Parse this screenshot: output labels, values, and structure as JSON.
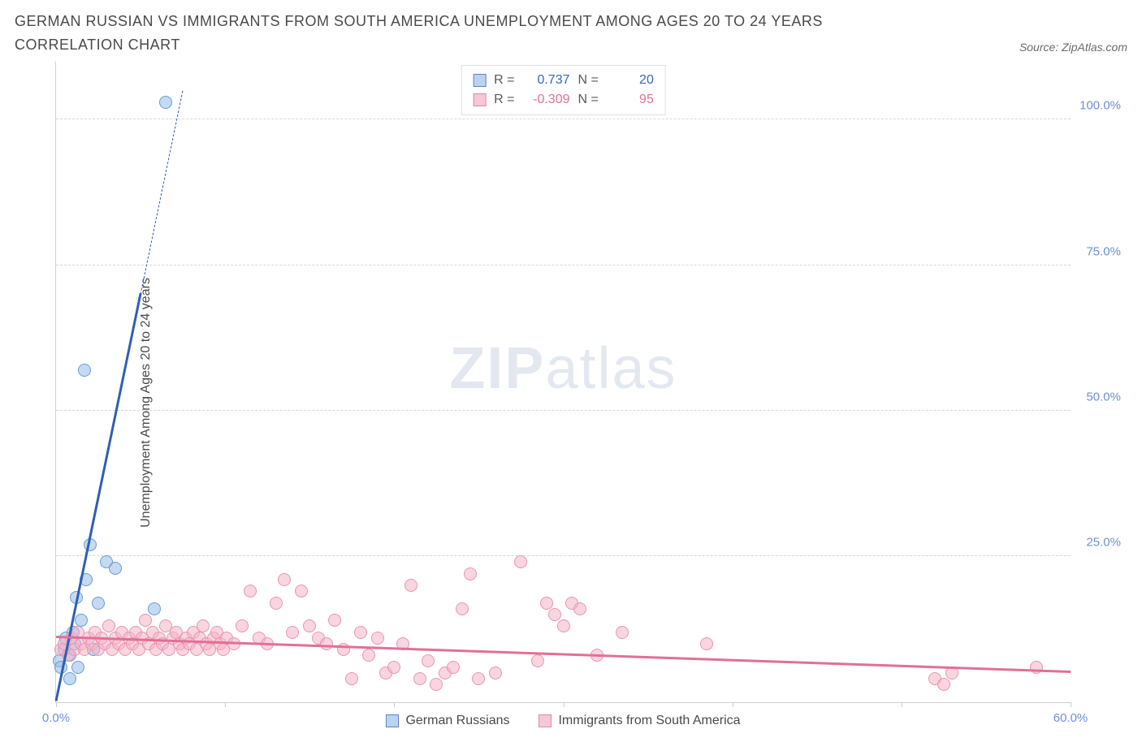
{
  "title": "GERMAN RUSSIAN VS IMMIGRANTS FROM SOUTH AMERICA UNEMPLOYMENT AMONG AGES 20 TO 24 YEARS CORRELATION CHART",
  "source_label": "Source: ZipAtlas.com",
  "y_axis_label": "Unemployment Among Ages 20 to 24 years",
  "watermark": {
    "bold": "ZIP",
    "rest": "atlas"
  },
  "axes": {
    "xlim": [
      0,
      60
    ],
    "ylim": [
      0,
      105
    ],
    "x_ticks": [
      0,
      10,
      20,
      30,
      40,
      50,
      60
    ],
    "x_tick_labels": [
      "0.0%",
      "",
      "",
      "",
      "",
      "",
      "60.0%"
    ],
    "y_ticks": [
      25,
      50,
      75,
      100
    ],
    "y_tick_labels": [
      "25.0%",
      "50.0%",
      "75.0%",
      "100.0%"
    ],
    "grid_color": "#d8d8d8",
    "axis_color": "#cfcfcf",
    "tick_label_color": "#6f8fd8"
  },
  "legend_top": {
    "rows": [
      {
        "swatch_fill": "#bcd3ef",
        "swatch_border": "#5a86c9",
        "r_label": "R =",
        "r_value": "0.737",
        "r_color": "#3467c6",
        "n_label": "N =",
        "n_value": "20",
        "n_color": "#3467c6"
      },
      {
        "swatch_fill": "#f6c7d4",
        "swatch_border": "#e08aa5",
        "r_label": "R =",
        "r_value": "-0.309",
        "r_color": "#e26f97",
        "n_label": "N =",
        "n_value": "95",
        "n_color": "#e26f97"
      }
    ]
  },
  "legend_bottom": {
    "items": [
      {
        "swatch_fill": "#bcd3ef",
        "swatch_border": "#5a86c9",
        "label": "German Russians"
      },
      {
        "swatch_fill": "#f6c7d4",
        "swatch_border": "#e08aa5",
        "label": "Immigrants from South America"
      }
    ]
  },
  "series": [
    {
      "name": "german-russians",
      "marker_fill": "rgba(150,188,232,0.55)",
      "marker_stroke": "#6a9bd6",
      "marker_radius": 8,
      "trend": {
        "color": "#2f5fb5",
        "width": 3,
        "x1": 0,
        "y1": 0,
        "x2": 7.5,
        "y2": 105,
        "dashed_extension": true
      },
      "points": [
        [
          0.2,
          7
        ],
        [
          0.3,
          6
        ],
        [
          0.5,
          9
        ],
        [
          0.6,
          11
        ],
        [
          0.8,
          8
        ],
        [
          0.8,
          4
        ],
        [
          1.0,
          12
        ],
        [
          1.1,
          10
        ],
        [
          1.2,
          18
        ],
        [
          1.3,
          6
        ],
        [
          1.5,
          14
        ],
        [
          1.8,
          21
        ],
        [
          2.0,
          27
        ],
        [
          2.2,
          9
        ],
        [
          2.5,
          17
        ],
        [
          3.0,
          24
        ],
        [
          3.5,
          23
        ],
        [
          1.7,
          57
        ],
        [
          5.8,
          16
        ],
        [
          6.5,
          103
        ]
      ]
    },
    {
      "name": "immigrants-south-america",
      "marker_fill": "rgba(244,178,198,0.55)",
      "marker_stroke": "#e795af",
      "marker_radius": 8,
      "trend": {
        "color": "#e26f97",
        "width": 3,
        "x1": 0,
        "y1": 11,
        "x2": 60,
        "y2": 5,
        "dashed_extension": false
      },
      "points": [
        [
          0.3,
          9
        ],
        [
          0.5,
          10
        ],
        [
          0.7,
          8
        ],
        [
          0.9,
          11
        ],
        [
          1.1,
          9
        ],
        [
          1.3,
          12
        ],
        [
          1.5,
          10
        ],
        [
          1.7,
          9
        ],
        [
          1.9,
          11
        ],
        [
          2.1,
          10
        ],
        [
          2.3,
          12
        ],
        [
          2.5,
          9
        ],
        [
          2.7,
          11
        ],
        [
          2.9,
          10
        ],
        [
          3.1,
          13
        ],
        [
          3.3,
          9
        ],
        [
          3.5,
          11
        ],
        [
          3.7,
          10
        ],
        [
          3.9,
          12
        ],
        [
          4.1,
          9
        ],
        [
          4.3,
          11
        ],
        [
          4.5,
          10
        ],
        [
          4.7,
          12
        ],
        [
          4.9,
          9
        ],
        [
          5.1,
          11
        ],
        [
          5.3,
          14
        ],
        [
          5.5,
          10
        ],
        [
          5.7,
          12
        ],
        [
          5.9,
          9
        ],
        [
          6.1,
          11
        ],
        [
          6.3,
          10
        ],
        [
          6.5,
          13
        ],
        [
          6.7,
          9
        ],
        [
          6.9,
          11
        ],
        [
          7.1,
          12
        ],
        [
          7.3,
          10
        ],
        [
          7.5,
          9
        ],
        [
          7.7,
          11
        ],
        [
          7.9,
          10
        ],
        [
          8.1,
          12
        ],
        [
          8.3,
          9
        ],
        [
          8.5,
          11
        ],
        [
          8.7,
          13
        ],
        [
          8.9,
          10
        ],
        [
          9.1,
          9
        ],
        [
          9.3,
          11
        ],
        [
          9.5,
          12
        ],
        [
          9.7,
          10
        ],
        [
          9.9,
          9
        ],
        [
          10.1,
          11
        ],
        [
          10.5,
          10
        ],
        [
          11,
          13
        ],
        [
          11.5,
          19
        ],
        [
          12,
          11
        ],
        [
          12.5,
          10
        ],
        [
          13,
          17
        ],
        [
          13.5,
          21
        ],
        [
          14,
          12
        ],
        [
          14.5,
          19
        ],
        [
          15,
          13
        ],
        [
          15.5,
          11
        ],
        [
          16,
          10
        ],
        [
          16.5,
          14
        ],
        [
          17,
          9
        ],
        [
          17.5,
          4
        ],
        [
          18,
          12
        ],
        [
          18.5,
          8
        ],
        [
          19,
          11
        ],
        [
          19.5,
          5
        ],
        [
          20,
          6
        ],
        [
          20.5,
          10
        ],
        [
          21,
          20
        ],
        [
          21.5,
          4
        ],
        [
          22,
          7
        ],
        [
          22.5,
          3
        ],
        [
          23,
          5
        ],
        [
          23.5,
          6
        ],
        [
          24,
          16
        ],
        [
          24.5,
          22
        ],
        [
          25,
          4
        ],
        [
          26,
          5
        ],
        [
          27.5,
          24
        ],
        [
          28.5,
          7
        ],
        [
          29,
          17
        ],
        [
          29.5,
          15
        ],
        [
          30,
          13
        ],
        [
          30.5,
          17
        ],
        [
          31,
          16
        ],
        [
          32,
          8
        ],
        [
          33.5,
          12
        ],
        [
          38.5,
          10
        ],
        [
          52,
          4
        ],
        [
          52.5,
          3
        ],
        [
          53,
          5
        ],
        [
          58,
          6
        ]
      ]
    }
  ]
}
